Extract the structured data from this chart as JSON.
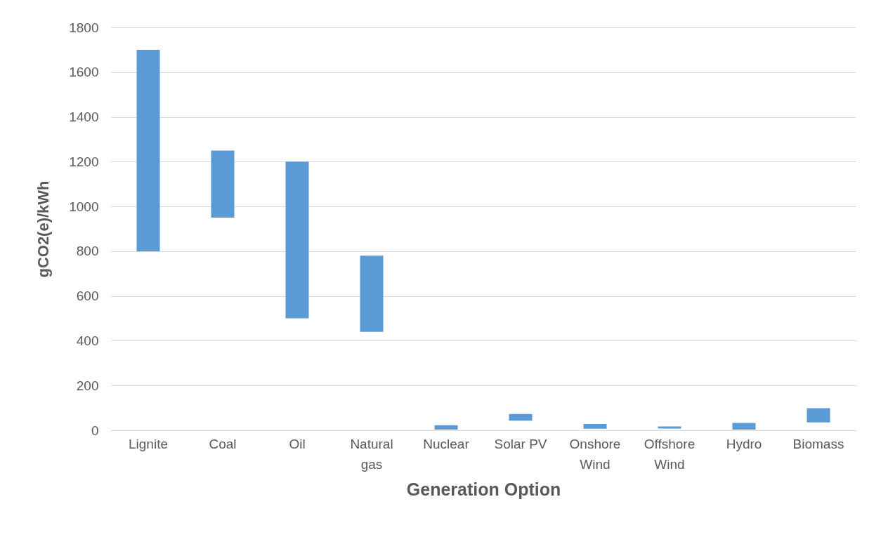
{
  "chart_data": {
    "type": "bar",
    "xlabel": "Generation Option",
    "ylabel": "gCO2(e)/kWh",
    "categories": [
      "Lignite",
      "Coal",
      "Oil",
      "Natural gas",
      "Nuclear",
      "Solar PV",
      "Onshore Wind",
      "Offshore Wind",
      "Hydro",
      "Biomass"
    ],
    "base": [
      800,
      950,
      500,
      440,
      3,
      43,
      7,
      8,
      3,
      35
    ],
    "values": [
      900,
      300,
      700,
      340,
      20,
      30,
      21,
      9,
      30,
      64
    ],
    "color": "#5b9bd5",
    "ylim": [
      0,
      1800
    ],
    "yticks": [
      0,
      200,
      400,
      600,
      800,
      1000,
      1200,
      1400,
      1600,
      1800
    ],
    "grid": "y"
  }
}
